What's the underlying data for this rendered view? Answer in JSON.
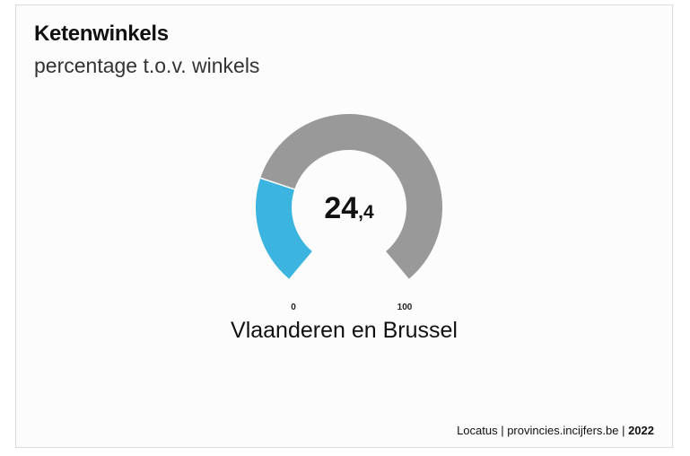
{
  "title": "Ketenwinkels",
  "subtitle": "percentage t.o.v. winkels",
  "chart_data": {
    "type": "gauge",
    "title": "Ketenwinkels",
    "subtitle": "percentage t.o.v. winkels",
    "value": 24.4,
    "value_label_int": "24",
    "value_label_dec": ",4",
    "min": 0,
    "max": 100,
    "min_label": "0",
    "max_label": "100",
    "category": "Vlaanderen en Brussel",
    "colors": {
      "value": "#3bb4e0",
      "track": "#999999"
    }
  },
  "footer": {
    "source": "Locatus | provincies.incijfers.be | ",
    "year": "2022"
  }
}
